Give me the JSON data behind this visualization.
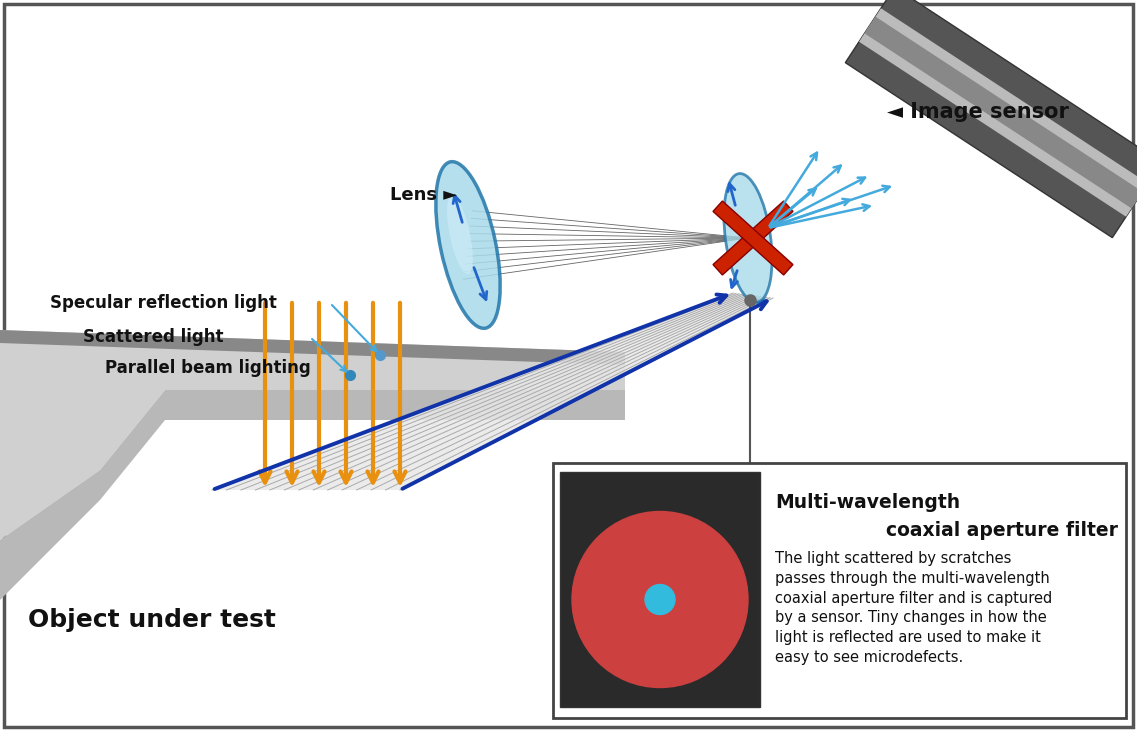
{
  "bg_color": "#ffffff",
  "border_color": "#555555",
  "gray_light": "#c8c8c8",
  "gray_dark": "#888888",
  "gray_darkest": "#555555",
  "lens_fill": "#a8daea",
  "lens_edge": "#2277aa",
  "dark_blue": "#1133aa",
  "med_blue": "#2266cc",
  "light_blue": "#44aadd",
  "orange": "#e89010",
  "red_filter": "#cc2200",
  "sensor_dark": "#555555",
  "sensor_mid": "#888888",
  "sensor_light": "#bbbbbb",
  "black": "#111111",
  "white": "#ffffff",
  "line_gray": "#666666",
  "photo_bg": "#2a2a2a",
  "red_circle": "#cc4040",
  "cyan_dot": "#33bbdd",
  "label_image_sensor": "◄ Image sensor",
  "label_lens": "Lens ►",
  "label_specular": "Specular reflection light",
  "label_scattered": "Scattered light",
  "label_parallel": "Parallel beam lighting",
  "label_object": "Object under test",
  "inset_title1": "Multi-wavelength",
  "inset_title2": "coaxial aperture filter",
  "inset_body": "The light scattered by scratches\npasses through the multi-wavelength\ncoaxial aperture filter and is captured\nby a sensor. Tiny changes in how the\nlight is reflected are used to make it\neasy to see microdefects."
}
